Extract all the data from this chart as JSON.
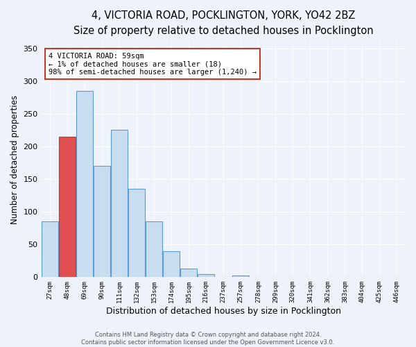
{
  "title": "4, VICTORIA ROAD, POCKLINGTON, YORK, YO42 2BZ",
  "subtitle": "Size of property relative to detached houses in Pocklington",
  "xlabel": "Distribution of detached houses by size in Pocklington",
  "ylabel": "Number of detached properties",
  "categories": [
    "27sqm",
    "48sqm",
    "69sqm",
    "90sqm",
    "111sqm",
    "132sqm",
    "153sqm",
    "174sqm",
    "195sqm",
    "216sqm",
    "237sqm",
    "257sqm",
    "278sqm",
    "299sqm",
    "320sqm",
    "341sqm",
    "362sqm",
    "383sqm",
    "404sqm",
    "425sqm",
    "446sqm"
  ],
  "bar_values": [
    85,
    215,
    285,
    170,
    225,
    135,
    85,
    40,
    13,
    5,
    0,
    3,
    0,
    0,
    0,
    0,
    0,
    0,
    0,
    0,
    0
  ],
  "bar_color": "#c9ddf0",
  "bar_edgecolor": "#5b9bd5",
  "highlight_bar_index": 1,
  "highlight_color": "#e05050",
  "highlight_edgecolor": "#c0392b",
  "annotation_text": "4 VICTORIA ROAD: 59sqm\n← 1% of detached houses are smaller (18)\n98% of semi-detached houses are larger (1,240) →",
  "annotation_box_edgecolor": "#c0392b",
  "annotation_fontsize": 7.5,
  "ylim": [
    0,
    360
  ],
  "yticks": [
    0,
    50,
    100,
    150,
    200,
    250,
    300,
    350
  ],
  "background_color": "#eef2fa",
  "plot_bg_color": "#eef2fa",
  "title_fontsize": 10.5,
  "subtitle_fontsize": 9.5,
  "xlabel_fontsize": 9,
  "ylabel_fontsize": 8.5,
  "footer_text": "Contains HM Land Registry data © Crown copyright and database right 2024.\nContains public sector information licensed under the Open Government Licence v3.0."
}
